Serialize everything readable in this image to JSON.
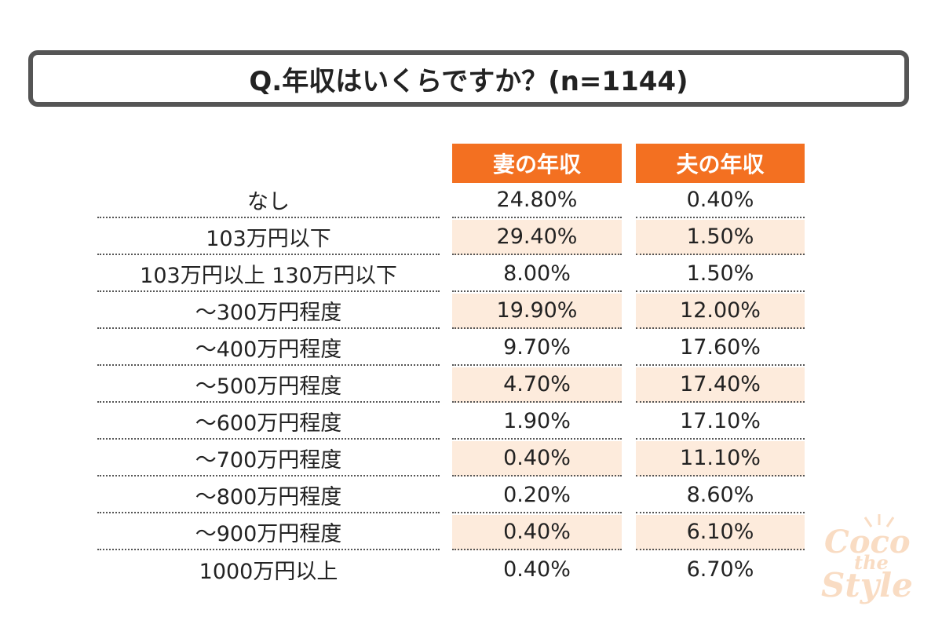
{
  "title": "Q.年収はいくらですか？(n=1144)",
  "chart_data": {
    "type": "table",
    "columns": [
      "妻の年収",
      "夫の年収"
    ],
    "rows": [
      {
        "label": "なし",
        "wife": "24.80%",
        "husband": "0.40%"
      },
      {
        "label": "103万円以下",
        "wife": "29.40%",
        "husband": "1.50%"
      },
      {
        "label": "103万円以上 130万円以下",
        "wife": "8.00%",
        "husband": "1.50%"
      },
      {
        "label": "～300万円程度",
        "wife": "19.90%",
        "husband": "12.00%"
      },
      {
        "label": "～400万円程度",
        "wife": "9.70%",
        "husband": "17.60%"
      },
      {
        "label": "～500万円程度",
        "wife": "4.70%",
        "husband": "17.40%"
      },
      {
        "label": "～600万円程度",
        "wife": "1.90%",
        "husband": "17.10%"
      },
      {
        "label": "～700万円程度",
        "wife": "0.40%",
        "husband": "11.10%"
      },
      {
        "label": "～800万円程度",
        "wife": "0.20%",
        "husband": "8.60%"
      },
      {
        "label": "～900万円程度",
        "wife": "0.40%",
        "husband": "6.10%"
      },
      {
        "label": "1000万円以上",
        "wife": "0.40%",
        "husband": "6.70%"
      }
    ]
  },
  "colors": {
    "header_bg": "#f37021",
    "header_text": "#ffffff",
    "row_shade": "#fdebdc",
    "border": "#555555"
  },
  "watermark": {
    "line1": "Coco",
    "line2": "the",
    "line3": "Style"
  }
}
